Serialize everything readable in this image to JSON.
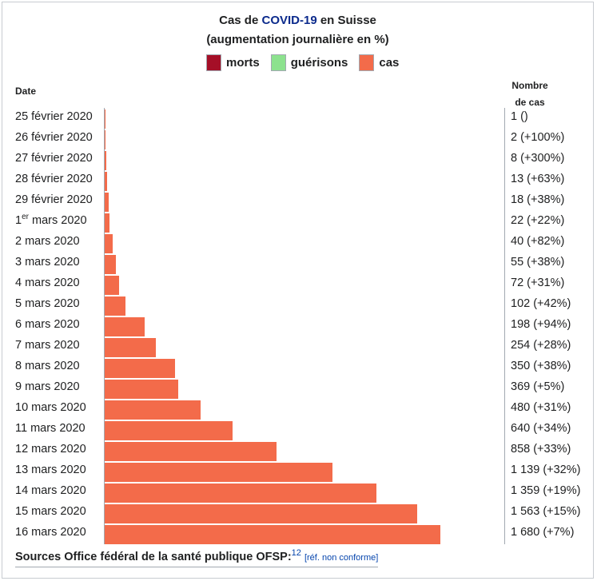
{
  "title": {
    "prefix": "Cas de ",
    "link": "COVID-19",
    "suffix": " en Suisse",
    "subtitle": "(augmentation journalière en %)"
  },
  "legend": [
    {
      "label": "morts",
      "color": "#a50f27"
    },
    {
      "label": "guérisons",
      "color": "#8ce28e"
    },
    {
      "label": "cas",
      "color": "#f36b4a"
    }
  ],
  "headers": {
    "date": "Date",
    "count_line1": "Nombre",
    "count_line2": "de cas"
  },
  "chart_data": {
    "type": "bar",
    "orientation": "horizontal",
    "series": [
      {
        "name": "cas",
        "color": "#f36b4a",
        "values": [
          1,
          2,
          8,
          13,
          18,
          22,
          40,
          55,
          72,
          102,
          198,
          254,
          350,
          369,
          480,
          640,
          858,
          1139,
          1359,
          1563,
          1680
        ]
      }
    ],
    "categories": [
      "25 février 2020",
      "26 février 2020",
      "27 février 2020",
      "28 février 2020",
      "29 février 2020",
      "1er mars 2020",
      "2 mars 2020",
      "3 mars 2020",
      "4 mars 2020",
      "5 mars 2020",
      "6 mars 2020",
      "7 mars 2020",
      "8 mars 2020",
      "9 mars 2020",
      "10 mars 2020",
      "11 mars 2020",
      "12 mars 2020",
      "13 mars 2020",
      "14 mars 2020",
      "15 mars 2020",
      "16 mars 2020"
    ],
    "rows": [
      {
        "date": "25 février 2020",
        "count_label": "1 ()"
      },
      {
        "date": "26 février 2020",
        "count_label": "2 (+100%)"
      },
      {
        "date": "27 février 2020",
        "count_label": "8 (+300%)"
      },
      {
        "date": "28 février 2020",
        "count_label": "13 (+63%)"
      },
      {
        "date": "29 février 2020",
        "count_label": "18 (+38%)"
      },
      {
        "date_num": "1",
        "date_sup": "er",
        "date_rest": " mars 2020",
        "count_label": "22 (+22%)"
      },
      {
        "date": "2 mars 2020",
        "count_label": "40 (+82%)"
      },
      {
        "date": "3 mars 2020",
        "count_label": "55 (+38%)"
      },
      {
        "date": "4 mars 2020",
        "count_label": "72 (+31%)"
      },
      {
        "date": "5 mars 2020",
        "count_label": "102 (+42%)"
      },
      {
        "date": "6 mars 2020",
        "count_label": "198 (+94%)"
      },
      {
        "date": "7 mars 2020",
        "count_label": "254 (+28%)"
      },
      {
        "date": "8 mars 2020",
        "count_label": "350 (+38%)"
      },
      {
        "date": "9 mars 2020",
        "count_label": "369 (+5%)"
      },
      {
        "date": "10 mars 2020",
        "count_label": "480 (+31%)"
      },
      {
        "date": "11 mars 2020",
        "count_label": "640 (+34%)"
      },
      {
        "date": "12 mars 2020",
        "count_label": "858 (+33%)"
      },
      {
        "date": "13 mars 2020",
        "count_label": "1 139 (+32%)"
      },
      {
        "date": "14 mars 2020",
        "count_label": "1 359 (+19%)"
      },
      {
        "date": "15 mars 2020",
        "count_label": "1 563 (+15%)"
      },
      {
        "date": "16 mars 2020",
        "count_label": "1 680 (+7%)"
      }
    ],
    "xlim": [
      0,
      1680
    ]
  },
  "sources": {
    "text": "Sources Office fédéral de la santé publique OFSP:",
    "ref": "12",
    "note": "[réf. non conforme]"
  }
}
